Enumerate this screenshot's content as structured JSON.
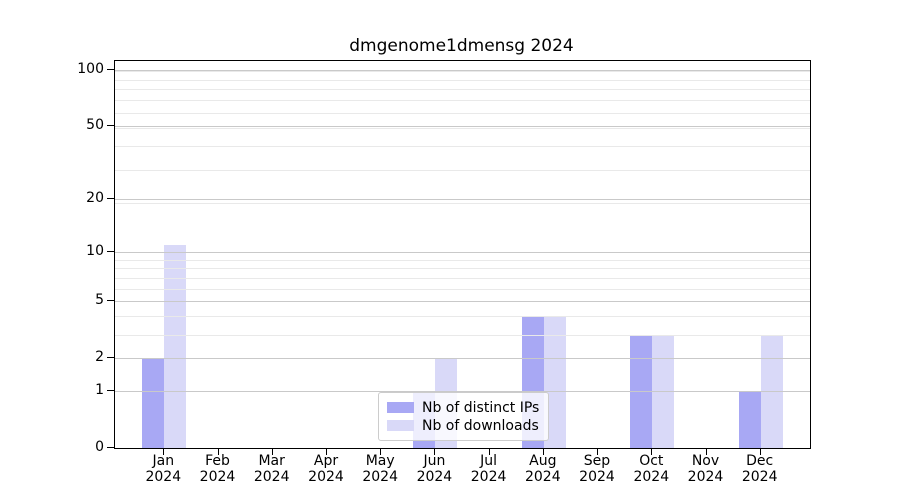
{
  "chart_data": {
    "type": "bar",
    "title": "dmgenome1dmensg 2024",
    "categories": [
      "Jan",
      "Feb",
      "Mar",
      "Apr",
      "May",
      "Jun",
      "Jul",
      "Aug",
      "Sep",
      "Oct",
      "Nov",
      "Dec"
    ],
    "category_year": "2024",
    "series": [
      {
        "name": "Nb of distinct IPs",
        "color": "#a8a8f4",
        "values": [
          2,
          0,
          0,
          0,
          0,
          1,
          0,
          4,
          0,
          3,
          0,
          1
        ]
      },
      {
        "name": "Nb of downloads",
        "color": "#d9d9f8",
        "values": [
          11,
          0,
          0,
          0,
          0,
          2,
          0,
          4,
          0,
          3,
          0,
          3
        ]
      }
    ],
    "yscale": "log1p",
    "yticks": [
      0,
      1,
      2,
      5,
      10,
      20,
      50,
      100
    ],
    "minor_grid_log_values": [
      2,
      3,
      4,
      5,
      6,
      7,
      8,
      9,
      10,
      20,
      30,
      40,
      50,
      60,
      70,
      80,
      90,
      100
    ],
    "ylim": [
      0,
      112
    ],
    "grid": true,
    "legend_position": "lower center"
  },
  "colors": {
    "bar_dark": "#a8a8f4",
    "bar_light": "#d9d9f8",
    "grid_major": "#c9c9c9",
    "grid_minor": "#e9e9e9",
    "axis": "#000000",
    "legend_border": "#cccccc"
  }
}
